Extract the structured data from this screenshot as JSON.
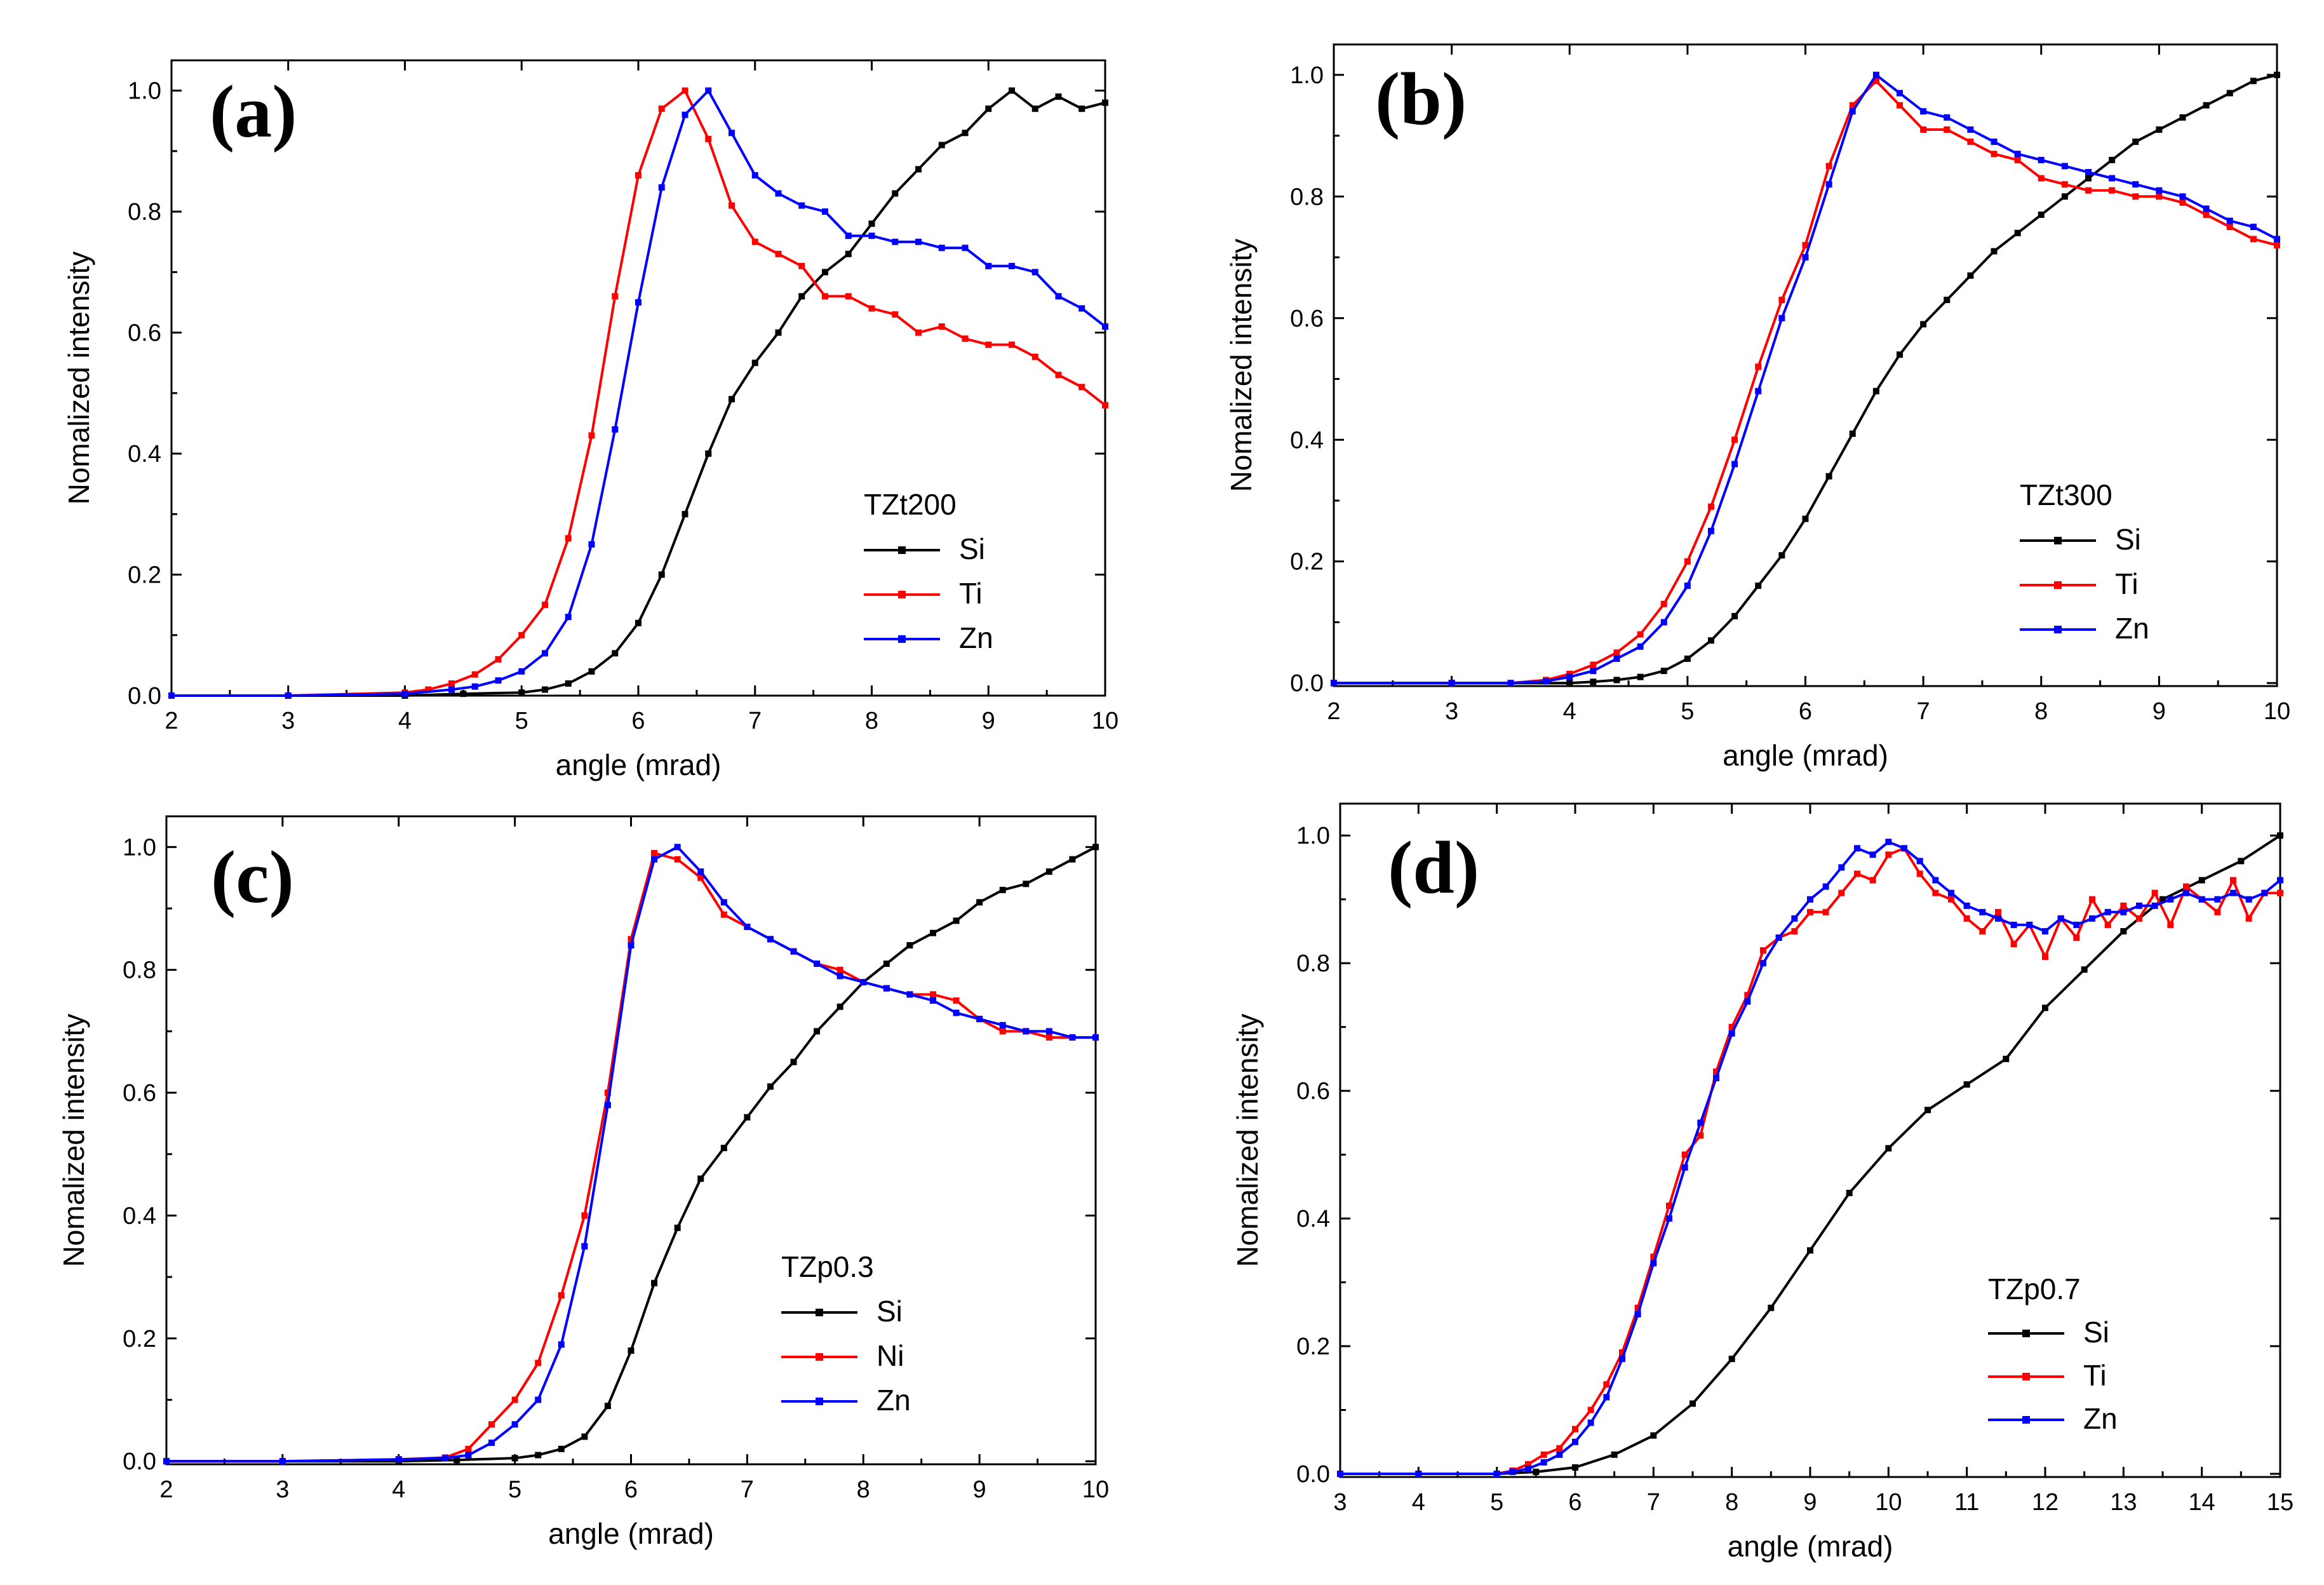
{
  "colors": {
    "Si": "#000000",
    "Ti": "#ff0000",
    "Ni": "#ff0000",
    "Zn": "#0000ff"
  },
  "chart_data": [
    {
      "type": "line",
      "panel_label": "(a)",
      "xlabel": "angle (mrad)",
      "ylabel": "Nomalized intensity",
      "xlim": [
        2,
        10
      ],
      "ylim": [
        0,
        1.05
      ],
      "xticks": [
        2,
        3,
        4,
        5,
        6,
        7,
        8,
        9,
        10
      ],
      "yticks": [
        0.0,
        0.2,
        0.4,
        0.6,
        0.8,
        1.0
      ],
      "legend_title": "TZt200",
      "legend_position": "bottom-right",
      "grid": false,
      "series": [
        {
          "name": "Si",
          "x": [
            2,
            3,
            4,
            4.5,
            5,
            5.2,
            5.4,
            5.6,
            5.8,
            6,
            6.2,
            6.4,
            6.6,
            6.8,
            7,
            7.2,
            7.4,
            7.6,
            7.8,
            8,
            8.2,
            8.4,
            8.6,
            8.8,
            9,
            9.2,
            9.4,
            9.6,
            9.8,
            10
          ],
          "y": [
            0,
            0,
            0,
            0.003,
            0.005,
            0.01,
            0.02,
            0.04,
            0.07,
            0.12,
            0.2,
            0.3,
            0.4,
            0.49,
            0.55,
            0.6,
            0.66,
            0.7,
            0.73,
            0.78,
            0.83,
            0.87,
            0.91,
            0.93,
            0.97,
            1.0,
            0.97,
            0.99,
            0.97,
            0.98
          ]
        },
        {
          "name": "Ti",
          "x": [
            2,
            3,
            4,
            4.2,
            4.4,
            4.6,
            4.8,
            5,
            5.2,
            5.4,
            5.6,
            5.8,
            6,
            6.2,
            6.4,
            6.6,
            6.8,
            7,
            7.2,
            7.4,
            7.6,
            7.8,
            8,
            8.2,
            8.4,
            8.6,
            8.8,
            9,
            9.2,
            9.4,
            9.6,
            9.8,
            10
          ],
          "y": [
            0,
            0,
            0.005,
            0.01,
            0.02,
            0.035,
            0.06,
            0.1,
            0.15,
            0.26,
            0.43,
            0.66,
            0.86,
            0.97,
            1.0,
            0.92,
            0.81,
            0.75,
            0.73,
            0.71,
            0.66,
            0.66,
            0.64,
            0.63,
            0.6,
            0.61,
            0.59,
            0.58,
            0.58,
            0.56,
            0.53,
            0.51,
            0.48
          ]
        },
        {
          "name": "Zn",
          "x": [
            2,
            3,
            4,
            4.4,
            4.6,
            4.8,
            5,
            5.2,
            5.4,
            5.6,
            5.8,
            6,
            6.2,
            6.4,
            6.6,
            6.8,
            7,
            7.2,
            7.4,
            7.6,
            7.8,
            8,
            8.2,
            8.4,
            8.6,
            8.8,
            9,
            9.2,
            9.4,
            9.6,
            9.8,
            10
          ],
          "y": [
            0,
            0,
            0.003,
            0.01,
            0.015,
            0.025,
            0.04,
            0.07,
            0.13,
            0.25,
            0.44,
            0.65,
            0.84,
            0.96,
            1.0,
            0.93,
            0.86,
            0.83,
            0.81,
            0.8,
            0.76,
            0.76,
            0.75,
            0.75,
            0.74,
            0.74,
            0.71,
            0.71,
            0.7,
            0.66,
            0.64,
            0.61
          ]
        }
      ]
    },
    {
      "type": "line",
      "panel_label": "(b)",
      "xlabel": "angle (mrad)",
      "ylabel": "Nomalized intensity",
      "xlim": [
        2,
        10
      ],
      "ylim": [
        -0.005,
        1.05
      ],
      "xticks": [
        2,
        3,
        4,
        5,
        6,
        7,
        8,
        9,
        10
      ],
      "yticks": [
        0.0,
        0.2,
        0.4,
        0.6,
        0.8,
        1.0
      ],
      "legend_title": "TZt300",
      "legend_position": "bottom-right",
      "grid": false,
      "series": [
        {
          "name": "Si",
          "x": [
            2,
            3,
            4,
            4.2,
            4.4,
            4.6,
            4.8,
            5,
            5.2,
            5.4,
            5.6,
            5.8,
            6,
            6.2,
            6.4,
            6.6,
            6.8,
            7,
            7.2,
            7.4,
            7.6,
            7.8,
            8,
            8.2,
            8.4,
            8.6,
            8.8,
            9,
            9.2,
            9.4,
            9.6,
            9.8,
            10
          ],
          "y": [
            0,
            0,
            0,
            0.002,
            0.005,
            0.01,
            0.02,
            0.04,
            0.07,
            0.11,
            0.16,
            0.21,
            0.27,
            0.34,
            0.41,
            0.48,
            0.54,
            0.59,
            0.63,
            0.67,
            0.71,
            0.74,
            0.77,
            0.8,
            0.83,
            0.86,
            0.89,
            0.91,
            0.93,
            0.95,
            0.97,
            0.99,
            1.0
          ]
        },
        {
          "name": "Ti",
          "x": [
            2,
            3,
            3.5,
            3.8,
            4,
            4.2,
            4.4,
            4.6,
            4.8,
            5,
            5.2,
            5.4,
            5.6,
            5.8,
            6,
            6.2,
            6.4,
            6.6,
            6.8,
            7,
            7.2,
            7.4,
            7.6,
            7.8,
            8,
            8.2,
            8.4,
            8.6,
            8.8,
            9,
            9.2,
            9.4,
            9.6,
            9.8,
            10
          ],
          "y": [
            0,
            0,
            0,
            0.005,
            0.015,
            0.03,
            0.05,
            0.08,
            0.13,
            0.2,
            0.29,
            0.4,
            0.52,
            0.63,
            0.72,
            0.85,
            0.95,
            0.99,
            0.95,
            0.91,
            0.91,
            0.89,
            0.87,
            0.86,
            0.83,
            0.82,
            0.81,
            0.81,
            0.8,
            0.8,
            0.79,
            0.77,
            0.75,
            0.73,
            0.72
          ]
        },
        {
          "name": "Zn",
          "x": [
            2,
            3,
            3.5,
            3.8,
            4,
            4.2,
            4.4,
            4.6,
            4.8,
            5,
            5.2,
            5.4,
            5.6,
            5.8,
            6,
            6.2,
            6.4,
            6.6,
            6.8,
            7,
            7.2,
            7.4,
            7.6,
            7.8,
            8,
            8.2,
            8.4,
            8.6,
            8.8,
            9,
            9.2,
            9.4,
            9.6,
            9.8,
            10
          ],
          "y": [
            0,
            0,
            0,
            0.003,
            0.01,
            0.02,
            0.04,
            0.06,
            0.1,
            0.16,
            0.25,
            0.36,
            0.48,
            0.6,
            0.7,
            0.82,
            0.94,
            1.0,
            0.97,
            0.94,
            0.93,
            0.91,
            0.89,
            0.87,
            0.86,
            0.85,
            0.84,
            0.83,
            0.82,
            0.81,
            0.8,
            0.78,
            0.76,
            0.75,
            0.73
          ]
        }
      ]
    },
    {
      "type": "line",
      "panel_label": "(c)",
      "xlabel": "angle (mrad)",
      "ylabel": "Nomalized intensity",
      "xlim": [
        2,
        10
      ],
      "ylim": [
        -0.005,
        1.05
      ],
      "xticks": [
        2,
        3,
        4,
        5,
        6,
        7,
        8,
        9,
        10
      ],
      "yticks": [
        0.0,
        0.2,
        0.4,
        0.6,
        0.8,
        1.0
      ],
      "legend_title": "TZp0.3",
      "legend_position": "bottom-right",
      "grid": false,
      "series": [
        {
          "name": "Si",
          "x": [
            2,
            3,
            4,
            4.5,
            5,
            5.2,
            5.4,
            5.6,
            5.8,
            6,
            6.2,
            6.4,
            6.6,
            6.8,
            7,
            7.2,
            7.4,
            7.6,
            7.8,
            8,
            8.2,
            8.4,
            8.6,
            8.8,
            9,
            9.2,
            9.4,
            9.6,
            9.8,
            10
          ],
          "y": [
            0,
            0,
            0,
            0.002,
            0.005,
            0.01,
            0.02,
            0.04,
            0.09,
            0.18,
            0.29,
            0.38,
            0.46,
            0.51,
            0.56,
            0.61,
            0.65,
            0.7,
            0.74,
            0.78,
            0.81,
            0.84,
            0.86,
            0.88,
            0.91,
            0.93,
            0.94,
            0.96,
            0.98,
            1.0
          ]
        },
        {
          "name": "Ni",
          "x": [
            2,
            3,
            4,
            4.4,
            4.6,
            4.8,
            5,
            5.2,
            5.4,
            5.6,
            5.8,
            6,
            6.2,
            6.4,
            6.6,
            6.8,
            7,
            7.2,
            7.4,
            7.6,
            7.8,
            8,
            8.2,
            8.4,
            8.6,
            8.8,
            9,
            9.2,
            9.4,
            9.6,
            9.8,
            10
          ],
          "y": [
            0,
            0,
            0.003,
            0.006,
            0.02,
            0.06,
            0.1,
            0.16,
            0.27,
            0.4,
            0.6,
            0.85,
            0.99,
            0.98,
            0.95,
            0.89,
            0.87,
            0.85,
            0.83,
            0.81,
            0.8,
            0.78,
            0.77,
            0.76,
            0.76,
            0.75,
            0.72,
            0.7,
            0.7,
            0.69,
            0.69,
            0.69
          ]
        },
        {
          "name": "Zn",
          "x": [
            2,
            3,
            4,
            4.4,
            4.6,
            4.8,
            5,
            5.2,
            5.4,
            5.6,
            5.8,
            6,
            6.2,
            6.4,
            6.6,
            6.8,
            7,
            7.2,
            7.4,
            7.6,
            7.8,
            8,
            8.2,
            8.4,
            8.6,
            8.8,
            9,
            9.2,
            9.4,
            9.6,
            9.8,
            10
          ],
          "y": [
            0,
            0,
            0.003,
            0.005,
            0.01,
            0.03,
            0.06,
            0.1,
            0.19,
            0.35,
            0.58,
            0.84,
            0.98,
            1.0,
            0.96,
            0.91,
            0.87,
            0.85,
            0.83,
            0.81,
            0.79,
            0.78,
            0.77,
            0.76,
            0.75,
            0.73,
            0.72,
            0.71,
            0.7,
            0.7,
            0.69,
            0.69
          ]
        }
      ]
    },
    {
      "type": "line",
      "panel_label": "(d)",
      "xlabel": "angle (mrad)",
      "ylabel": "Nomalized intensity",
      "xlim": [
        3,
        15
      ],
      "ylim": [
        -0.005,
        1.05
      ],
      "xticks": [
        3,
        4,
        5,
        6,
        7,
        8,
        9,
        10,
        11,
        12,
        13,
        14,
        15
      ],
      "yticks": [
        0.0,
        0.2,
        0.4,
        0.6,
        0.8,
        1.0
      ],
      "legend_title": "TZp0.7",
      "legend_position": "bottom-right",
      "grid": false,
      "series": [
        {
          "name": "Si",
          "x": [
            3,
            4,
            5,
            5.5,
            6,
            6.5,
            7,
            7.5,
            8,
            8.5,
            9,
            9.5,
            10,
            10.5,
            11,
            11.5,
            12,
            12.5,
            13,
            13.5,
            14,
            14.5,
            15
          ],
          "y": [
            0,
            0,
            0,
            0.003,
            0.01,
            0.03,
            0.06,
            0.11,
            0.18,
            0.26,
            0.35,
            0.44,
            0.51,
            0.57,
            0.61,
            0.65,
            0.73,
            0.79,
            0.85,
            0.9,
            0.93,
            0.96,
            1.0
          ]
        },
        {
          "name": "Ti",
          "x": [
            3,
            4,
            5,
            5.2,
            5.4,
            5.6,
            5.8,
            6,
            6.2,
            6.4,
            6.6,
            6.8,
            7,
            7.2,
            7.4,
            7.6,
            7.8,
            8,
            8.2,
            8.4,
            8.6,
            8.8,
            9,
            9.2,
            9.4,
            9.6,
            9.8,
            10,
            10.2,
            10.4,
            10.6,
            10.8,
            11,
            11.2,
            11.4,
            11.6,
            11.8,
            12,
            12.2,
            12.4,
            12.6,
            12.8,
            13,
            13.2,
            13.4,
            13.6,
            13.8,
            14,
            14.2,
            14.4,
            14.6,
            14.8,
            15
          ],
          "y": [
            0,
            0,
            0,
            0.005,
            0.015,
            0.03,
            0.04,
            0.07,
            0.1,
            0.14,
            0.19,
            0.26,
            0.34,
            0.42,
            0.5,
            0.53,
            0.63,
            0.7,
            0.75,
            0.82,
            0.84,
            0.85,
            0.88,
            0.88,
            0.91,
            0.94,
            0.93,
            0.97,
            0.98,
            0.94,
            0.91,
            0.9,
            0.87,
            0.85,
            0.88,
            0.83,
            0.86,
            0.81,
            0.87,
            0.84,
            0.9,
            0.86,
            0.89,
            0.87,
            0.91,
            0.86,
            0.92,
            0.9,
            0.88,
            0.93,
            0.87,
            0.91,
            0.91
          ]
        },
        {
          "name": "Zn",
          "x": [
            3,
            4,
            5,
            5.2,
            5.4,
            5.6,
            5.8,
            6,
            6.2,
            6.4,
            6.6,
            6.8,
            7,
            7.2,
            7.4,
            7.6,
            7.8,
            8,
            8.2,
            8.4,
            8.6,
            8.8,
            9,
            9.2,
            9.4,
            9.6,
            9.8,
            10,
            10.2,
            10.4,
            10.6,
            10.8,
            11,
            11.2,
            11.4,
            11.6,
            11.8,
            12,
            12.2,
            12.4,
            12.6,
            12.8,
            13,
            13.2,
            13.4,
            13.6,
            13.8,
            14,
            14.2,
            14.4,
            14.6,
            14.8,
            15
          ],
          "y": [
            0,
            0,
            0,
            0.003,
            0.008,
            0.018,
            0.03,
            0.05,
            0.08,
            0.12,
            0.18,
            0.25,
            0.33,
            0.4,
            0.48,
            0.55,
            0.62,
            0.69,
            0.74,
            0.8,
            0.84,
            0.87,
            0.9,
            0.92,
            0.95,
            0.98,
            0.97,
            0.99,
            0.98,
            0.96,
            0.93,
            0.91,
            0.89,
            0.88,
            0.87,
            0.86,
            0.86,
            0.85,
            0.87,
            0.86,
            0.87,
            0.88,
            0.88,
            0.89,
            0.89,
            0.9,
            0.91,
            0.9,
            0.9,
            0.91,
            0.9,
            0.91,
            0.93
          ]
        }
      ]
    }
  ]
}
